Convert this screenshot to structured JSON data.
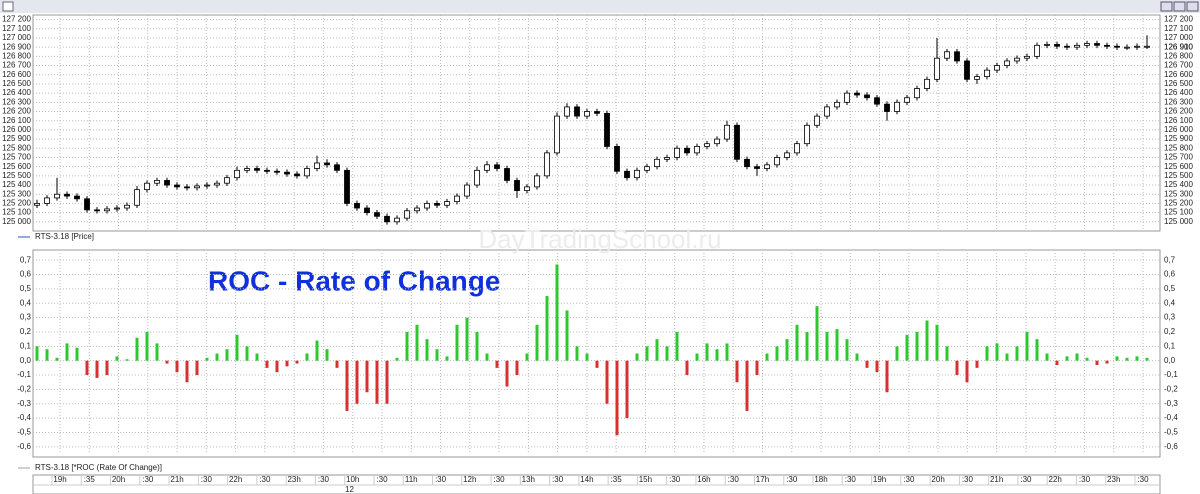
{
  "watermark": "DayTradingSchool.ru",
  "chart_data": [
    {
      "type": "candlestick",
      "legend": "RTS-3.18 [Price]",
      "legend_color": "#3050c8",
      "up_color": "#ffffff",
      "down_color": "#000000",
      "grid": true,
      "ylim": [
        124900,
        127250
      ],
      "yticks": [
        {
          "value": 125000,
          "label": "125 000"
        },
        {
          "value": 125100,
          "label": "125 100"
        },
        {
          "value": 125200,
          "label": "125 200"
        },
        {
          "value": 125300,
          "label": "125 300"
        },
        {
          "value": 125400,
          "label": "125 400"
        },
        {
          "value": 125500,
          "label": "125 500"
        },
        {
          "value": 125600,
          "label": "125 600"
        },
        {
          "value": 125700,
          "label": "125 700"
        },
        {
          "value": 125800,
          "label": "125 800"
        },
        {
          "value": 125900,
          "label": "125 900"
        },
        {
          "value": 126000,
          "label": "126 000"
        },
        {
          "value": 126100,
          "label": "126 100"
        },
        {
          "value": 126200,
          "label": "126 200"
        },
        {
          "value": 126300,
          "label": "126 300"
        },
        {
          "value": 126400,
          "label": "126 400"
        },
        {
          "value": 126500,
          "label": "126 500"
        },
        {
          "value": 126600,
          "label": "126 600"
        },
        {
          "value": 126700,
          "label": "126 700"
        },
        {
          "value": 126800,
          "label": "126 800"
        },
        {
          "value": 126900,
          "label": "126 900"
        },
        {
          "value": 127000,
          "label": "127 000"
        },
        {
          "value": 127100,
          "label": "127 100"
        },
        {
          "value": 127200,
          "label": "127 200"
        }
      ],
      "last_price": {
        "value": 126910,
        "label": "126 910",
        "color": "#2040d0"
      },
      "open": [
        125180,
        125200,
        125260,
        125300,
        125280,
        125250,
        125130,
        125120,
        125140,
        125150,
        125180,
        125350,
        125420,
        125450,
        125400,
        125380,
        125370,
        125390,
        125400,
        125420,
        125480,
        125560,
        125580,
        125560,
        125550,
        125540,
        125520,
        125500,
        125580,
        125640,
        125620,
        125560,
        125200,
        125150,
        125100,
        125060,
        125000,
        125040,
        125120,
        125150,
        125200,
        125180,
        125220,
        125280,
        125400,
        125560,
        125620,
        125580,
        125450,
        125340,
        125380,
        125500,
        125750,
        126150,
        126250,
        126150,
        126200,
        126180,
        125820,
        125550,
        125480,
        125560,
        125600,
        125680,
        125700,
        125800,
        125750,
        125820,
        125850,
        125900,
        126050,
        125680,
        125600,
        125580,
        125620,
        125700,
        125750,
        125850,
        126050,
        126150,
        126250,
        126300,
        126400,
        126380,
        126350,
        126280,
        126200,
        126300,
        126350,
        126450,
        126550,
        126780,
        126850,
        126750,
        126550,
        126580,
        126650,
        126700,
        126750,
        126780,
        126800,
        126920,
        126930,
        126910,
        126900,
        126920,
        126940,
        126920,
        126910,
        126900,
        126900,
        126910
      ],
      "high": [
        125240,
        125290,
        125480,
        125330,
        125310,
        125280,
        125160,
        125170,
        125180,
        125210,
        125390,
        125450,
        125480,
        125480,
        125430,
        125410,
        125420,
        125430,
        125450,
        125510,
        125600,
        125610,
        125610,
        125590,
        125580,
        125570,
        125550,
        125610,
        125720,
        125680,
        125650,
        125590,
        125230,
        125180,
        125130,
        125090,
        125070,
        125150,
        125180,
        125230,
        125230,
        125250,
        125310,
        125430,
        125600,
        125660,
        125650,
        125610,
        125480,
        125410,
        125530,
        125780,
        126190,
        126290,
        126280,
        126230,
        126230,
        126210,
        125850,
        125580,
        125590,
        125630,
        125710,
        125730,
        125830,
        125830,
        125850,
        125880,
        125930,
        126100,
        126080,
        125710,
        125630,
        125650,
        125730,
        125780,
        125880,
        126080,
        126180,
        126280,
        126330,
        126430,
        126430,
        126410,
        126380,
        126310,
        126330,
        126380,
        126480,
        126580,
        127000,
        126880,
        126880,
        126780,
        126610,
        126680,
        126730,
        126780,
        126810,
        126830,
        126950,
        126960,
        126960,
        126940,
        126950,
        126970,
        126970,
        126950,
        126940,
        126930,
        126940,
        127030
      ],
      "low": [
        125150,
        125170,
        125230,
        125250,
        125220,
        125100,
        125090,
        125090,
        125110,
        125120,
        125150,
        125320,
        125390,
        125370,
        125350,
        125340,
        125340,
        125360,
        125370,
        125390,
        125450,
        125530,
        125530,
        125520,
        125510,
        125490,
        125470,
        125470,
        125550,
        125590,
        125530,
        125170,
        125120,
        125070,
        125030,
        124970,
        124970,
        125010,
        125090,
        125120,
        125150,
        125150,
        125190,
        125250,
        125370,
        125530,
        125550,
        125420,
        125260,
        125310,
        125350,
        125470,
        125720,
        126120,
        126120,
        126120,
        126150,
        125790,
        125520,
        125450,
        125450,
        125530,
        125570,
        125650,
        125670,
        125720,
        125720,
        125790,
        125820,
        125870,
        125650,
        125570,
        125500,
        125550,
        125590,
        125670,
        125720,
        125820,
        126020,
        126120,
        126220,
        126270,
        126350,
        126320,
        126250,
        126100,
        126170,
        126270,
        126320,
        126420,
        126520,
        126750,
        126720,
        126520,
        126500,
        126550,
        126620,
        126670,
        126720,
        126750,
        126770,
        126890,
        126880,
        126870,
        126870,
        126890,
        126890,
        126880,
        126870,
        126870,
        126870,
        126880
      ],
      "close": [
        125200,
        125260,
        125300,
        125280,
        125250,
        125130,
        125120,
        125140,
        125150,
        125180,
        125350,
        125420,
        125450,
        125400,
        125380,
        125370,
        125390,
        125400,
        125420,
        125480,
        125560,
        125580,
        125560,
        125550,
        125540,
        125520,
        125500,
        125580,
        125640,
        125620,
        125560,
        125200,
        125150,
        125100,
        125060,
        125000,
        125040,
        125120,
        125150,
        125200,
        125180,
        125220,
        125280,
        125400,
        125560,
        125620,
        125580,
        125450,
        125340,
        125380,
        125500,
        125750,
        126150,
        126250,
        126150,
        126200,
        126180,
        125820,
        125550,
        125480,
        125560,
        125600,
        125680,
        125700,
        125800,
        125750,
        125820,
        125850,
        125900,
        126050,
        125680,
        125600,
        125580,
        125620,
        125700,
        125750,
        125850,
        126050,
        126150,
        126250,
        126300,
        126400,
        126380,
        126350,
        126280,
        126200,
        126300,
        126350,
        126450,
        126550,
        126780,
        126850,
        126750,
        126550,
        126580,
        126650,
        126700,
        126750,
        126780,
        126800,
        126920,
        126930,
        126910,
        126900,
        126920,
        126940,
        126920,
        126910,
        126900,
        126900,
        126910,
        126910
      ]
    },
    {
      "type": "bar",
      "title": "ROC - Rate of Change",
      "title_color": "#1030e0",
      "legend": "RTS-3.18 [*ROC (Rate Of Change)]",
      "legend_color": "#a0a0a0",
      "positive_color": "#2ec82e",
      "negative_color": "#d83030",
      "grid": true,
      "ylim": [
        -0.65,
        0.75
      ],
      "yticks": [
        {
          "value": -0.6,
          "label": "-0,6"
        },
        {
          "value": -0.5,
          "label": "-0,5"
        },
        {
          "value": -0.4,
          "label": "-0,4"
        },
        {
          "value": -0.3,
          "label": "-0,3"
        },
        {
          "value": -0.2,
          "label": "-0,2"
        },
        {
          "value": -0.1,
          "label": "-0,1"
        },
        {
          "value": 0,
          "label": "0,0"
        },
        {
          "value": 0.1,
          "label": "0,1"
        },
        {
          "value": 0.2,
          "label": "0,2"
        },
        {
          "value": 0.3,
          "label": "0,3"
        },
        {
          "value": 0.4,
          "label": "0,4"
        },
        {
          "value": 0.5,
          "label": "0,5"
        },
        {
          "value": 0.6,
          "label": "0,6"
        },
        {
          "value": 0.7,
          "label": "0,7"
        }
      ],
      "values": [
        0.1,
        0.08,
        0.02,
        0.12,
        0.09,
        -0.1,
        -0.12,
        -0.1,
        0.03,
        0.01,
        0.16,
        0.2,
        0.12,
        -0.02,
        -0.08,
        -0.15,
        -0.1,
        0.02,
        0.05,
        0.08,
        0.18,
        0.1,
        0.05,
        -0.05,
        -0.08,
        -0.04,
        -0.02,
        0.05,
        0.14,
        0.08,
        -0.05,
        -0.35,
        -0.3,
        -0.22,
        -0.3,
        -0.3,
        0.02,
        0.2,
        0.25,
        0.15,
        0.08,
        0.03,
        0.25,
        0.3,
        0.2,
        0.05,
        -0.05,
        -0.18,
        -0.1,
        0.05,
        0.25,
        0.45,
        0.67,
        0.35,
        0.1,
        0.05,
        -0.05,
        -0.3,
        -0.52,
        -0.4,
        0.05,
        0.1,
        0.15,
        0.1,
        0.2,
        -0.1,
        0.05,
        0.12,
        0.08,
        0.12,
        -0.15,
        -0.35,
        -0.1,
        0.05,
        0.1,
        0.15,
        0.25,
        0.2,
        0.38,
        0.2,
        0.22,
        0.15,
        0.05,
        -0.05,
        -0.08,
        -0.22,
        0.1,
        0.18,
        0.2,
        0.28,
        0.25,
        0.1,
        -0.1,
        -0.15,
        -0.05,
        0.1,
        0.12,
        0.05,
        0.1,
        0.2,
        0.15,
        0.05,
        -0.03,
        0.03,
        0.05,
        0.02,
        -0.03,
        -0.02,
        0.03,
        0.02,
        0.03,
        0.02
      ]
    }
  ],
  "time_axis": {
    "labels": [
      "19h",
      ":35",
      "20h",
      ":30",
      "21h",
      ":30",
      "22h",
      ":30",
      "23h",
      ":30",
      "10h",
      ":30",
      "11h",
      ":30",
      "12h",
      ":30",
      "13h",
      ":30",
      "14h",
      ":35",
      "15h",
      ":30",
      "16h",
      ":30",
      "17h",
      ":30",
      "18h",
      ":30",
      "19h",
      ":30",
      "20h",
      ":30",
      "21h",
      ":30",
      "22h",
      ":30",
      "23h",
      ":30"
    ],
    "date": "12"
  }
}
